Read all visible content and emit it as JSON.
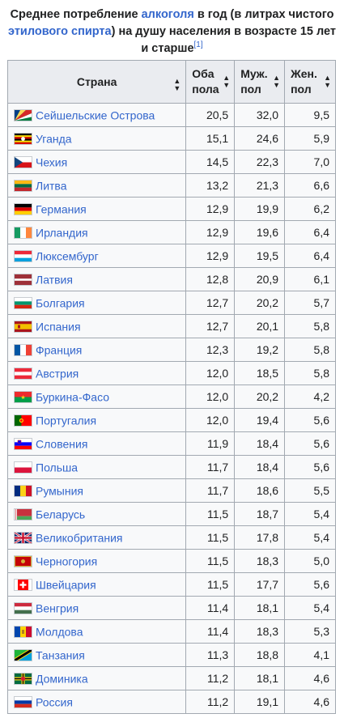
{
  "caption": {
    "part1": "Среднее потребление ",
    "link1": "алкоголя",
    "part2": " в год (в литрах чистого ",
    "link2": "этилового спирта",
    "part3": ") на душу населения в возрасте 15 лет и старше",
    "ref": "[1]"
  },
  "headers": {
    "country": "Страна",
    "both": "Оба пола",
    "male": "Муж. пол",
    "female": "Жен. пол"
  },
  "rows": [
    {
      "country": "Сейшельские Острова",
      "both": "20,5",
      "male": "32,0",
      "female": "9,5",
      "flag": "seychelles"
    },
    {
      "country": "Уганда",
      "both": "15,1",
      "male": "24,6",
      "female": "5,9",
      "flag": "uganda"
    },
    {
      "country": "Чехия",
      "both": "14,5",
      "male": "22,3",
      "female": "7,0",
      "flag": "czech"
    },
    {
      "country": "Литва",
      "both": "13,2",
      "male": "21,3",
      "female": "6,6",
      "flag": "lithuania"
    },
    {
      "country": "Германия",
      "both": "12,9",
      "male": "19,9",
      "female": "6,2",
      "flag": "germany"
    },
    {
      "country": "Ирландия",
      "both": "12,9",
      "male": "19,6",
      "female": "6,4",
      "flag": "ireland"
    },
    {
      "country": "Люксембург",
      "both": "12,9",
      "male": "19,5",
      "female": "6,4",
      "flag": "luxembourg"
    },
    {
      "country": "Латвия",
      "both": "12,8",
      "male": "20,9",
      "female": "6,1",
      "flag": "latvia"
    },
    {
      "country": "Болгария",
      "both": "12,7",
      "male": "20,2",
      "female": "5,7",
      "flag": "bulgaria"
    },
    {
      "country": "Испания",
      "both": "12,7",
      "male": "20,1",
      "female": "5,8",
      "flag": "spain"
    },
    {
      "country": "Франция",
      "both": "12,3",
      "male": "19,2",
      "female": "5,8",
      "flag": "france"
    },
    {
      "country": "Австрия",
      "both": "12,0",
      "male": "18,5",
      "female": "5,8",
      "flag": "austria"
    },
    {
      "country": "Буркина-Фасо",
      "both": "12,0",
      "male": "20,2",
      "female": "4,2",
      "flag": "burkina"
    },
    {
      "country": "Португалия",
      "both": "12,0",
      "male": "19,4",
      "female": "5,6",
      "flag": "portugal"
    },
    {
      "country": "Словения",
      "both": "11,9",
      "male": "18,4",
      "female": "5,6",
      "flag": "slovenia"
    },
    {
      "country": "Польша",
      "both": "11,7",
      "male": "18,4",
      "female": "5,6",
      "flag": "poland"
    },
    {
      "country": "Румыния",
      "both": "11,7",
      "male": "18,6",
      "female": "5,5",
      "flag": "romania"
    },
    {
      "country": "Беларусь",
      "both": "11,5",
      "male": "18,7",
      "female": "5,4",
      "flag": "belarus"
    },
    {
      "country": "Великобритания",
      "both": "11,5",
      "male": "17,8",
      "female": "5,4",
      "flag": "uk"
    },
    {
      "country": "Черногория",
      "both": "11,5",
      "male": "18,3",
      "female": "5,0",
      "flag": "montenegro"
    },
    {
      "country": "Швейцария",
      "both": "11,5",
      "male": "17,7",
      "female": "5,6",
      "flag": "switzerland"
    },
    {
      "country": "Венгрия",
      "both": "11,4",
      "male": "18,1",
      "female": "5,4",
      "flag": "hungary"
    },
    {
      "country": "Молдова",
      "both": "11,4",
      "male": "18,3",
      "female": "5,3",
      "flag": "moldova"
    },
    {
      "country": "Танзания",
      "both": "11,3",
      "male": "18,8",
      "female": "4,1",
      "flag": "tanzania"
    },
    {
      "country": "Доминика",
      "both": "11,2",
      "male": "18,1",
      "female": "4,6",
      "flag": "dominica"
    },
    {
      "country": "Россия",
      "both": "11,2",
      "male": "19,1",
      "female": "4,6",
      "flag": "russia"
    }
  ]
}
